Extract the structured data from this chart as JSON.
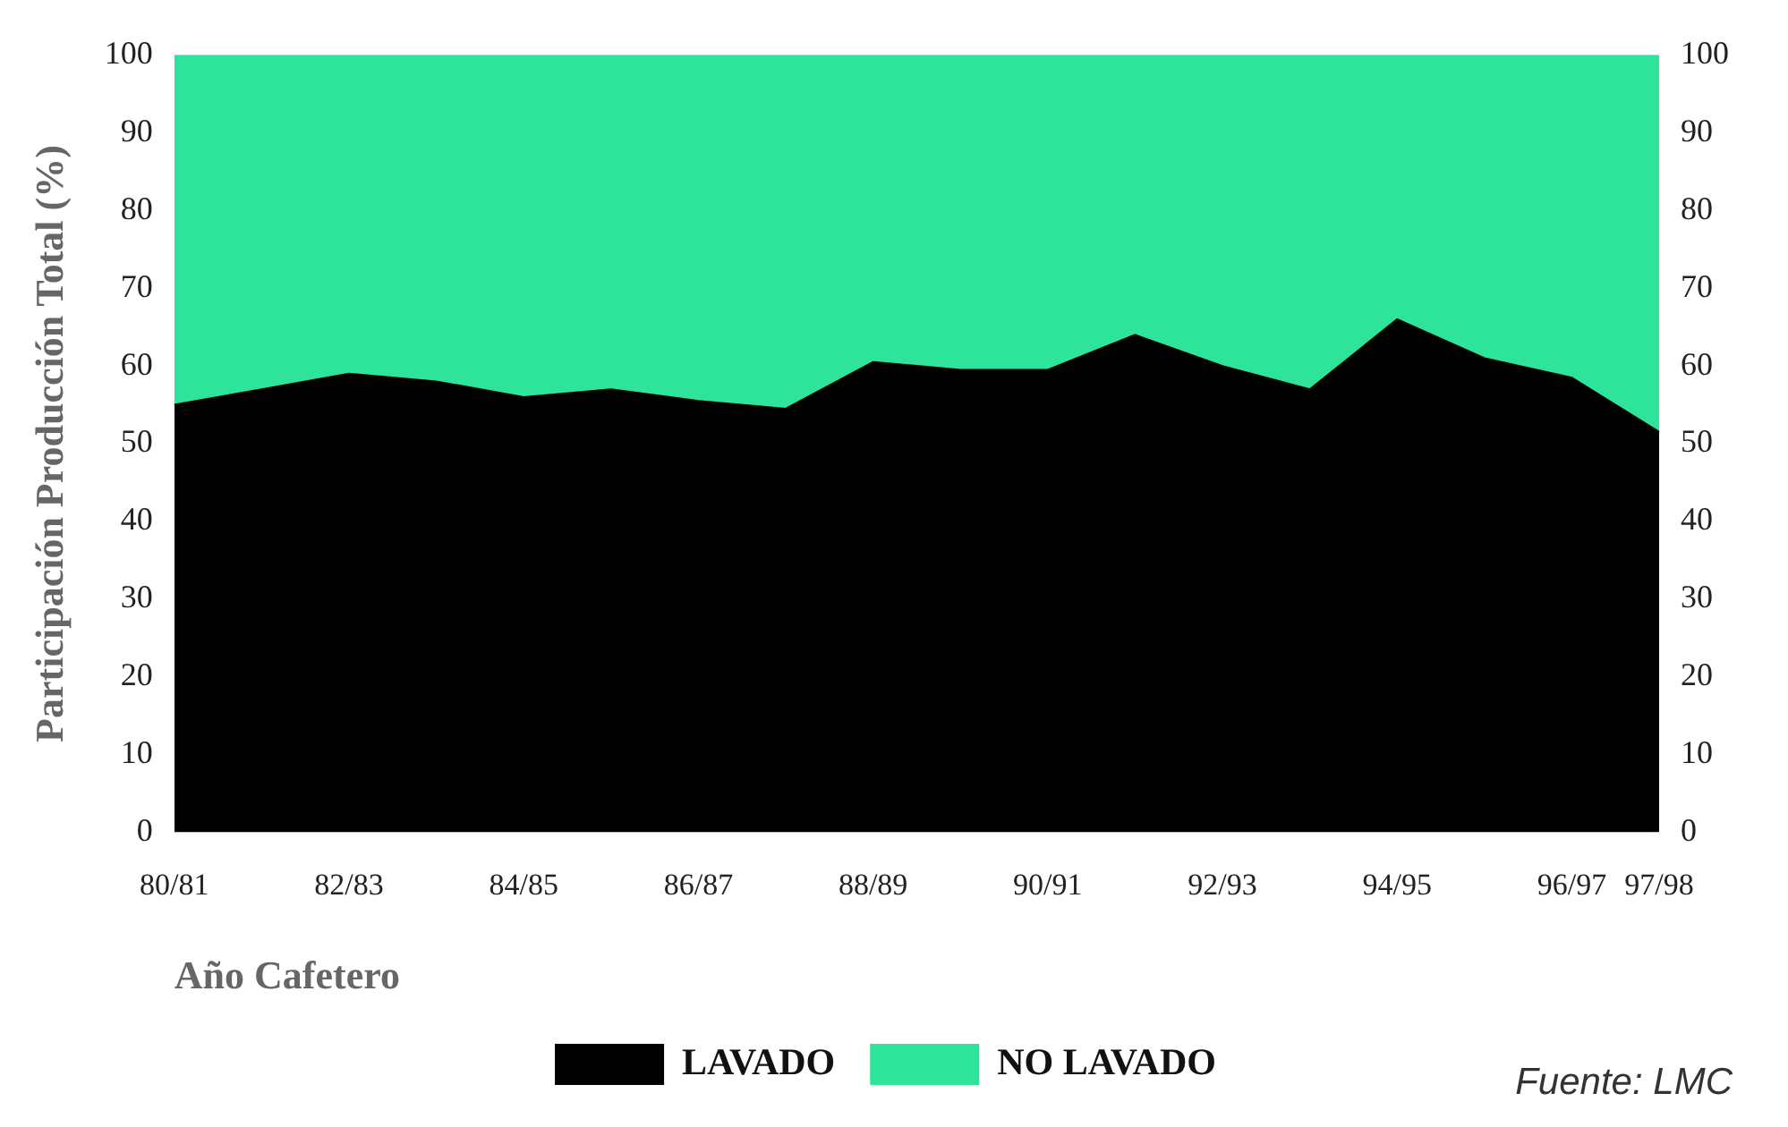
{
  "chart_data": {
    "type": "area",
    "stacked": true,
    "xlabel": "Año Cafetero",
    "ylabel": "Participación Producción Total (%)",
    "categories": [
      "80/81",
      null,
      "82/83",
      null,
      "84/85",
      null,
      "86/87",
      null,
      "88/89",
      null,
      "90/91",
      null,
      "92/93",
      null,
      "94/95",
      null,
      "96/97",
      "97/98"
    ],
    "series": [
      {
        "name": "LAVADO",
        "color": "#000000",
        "values": [
          55,
          57,
          59,
          58,
          56,
          57,
          55.5,
          54.5,
          60.5,
          59.5,
          59.5,
          64,
          60,
          57,
          66,
          61,
          58.5,
          51.5
        ]
      },
      {
        "name": "NO LAVADO",
        "color": "#2ee39a",
        "values": [
          45,
          43,
          41,
          42,
          44,
          43,
          44.5,
          45.5,
          39.5,
          40.5,
          40.5,
          36,
          40,
          43,
          34,
          39,
          41.5,
          48.5
        ]
      }
    ],
    "ylim": [
      0,
      100
    ],
    "yticks": [
      0,
      10,
      20,
      30,
      40,
      50,
      60,
      70,
      80,
      90,
      100
    ],
    "y2lim": [
      0,
      100
    ],
    "y2ticks": [
      0,
      10,
      20,
      30,
      40,
      50,
      60,
      70,
      80,
      90,
      100
    ],
    "grid": false,
    "legend": "bottom",
    "annotations": [
      "Fuente: LMC"
    ]
  }
}
